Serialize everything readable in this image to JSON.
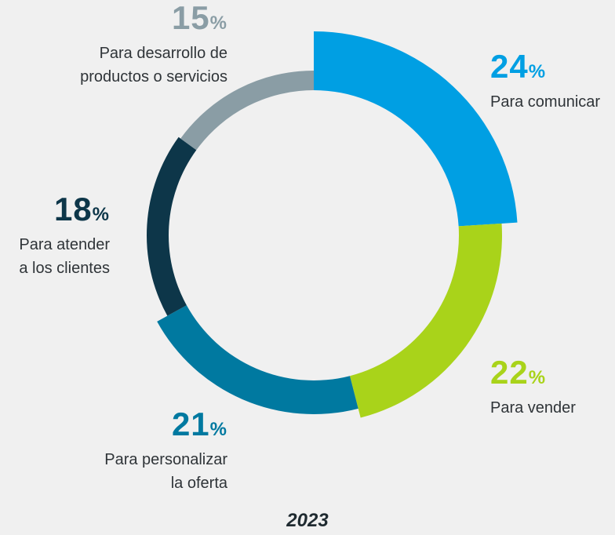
{
  "chart_data": {
    "type": "donut",
    "title": "2023",
    "categories": [
      "Para comunicar",
      "Para vender",
      "Para personalizar la oferta",
      "Para atender a los clientes",
      "Para desarrollo de productos o servicios"
    ],
    "values": [
      24,
      22,
      21,
      18,
      15
    ],
    "value_labels": [
      "24%",
      "22%",
      "21%",
      "18%",
      "15%"
    ],
    "colors": [
      "#009fe3",
      "#a9d31a",
      "#0079a0",
      "#0d3649",
      "#8a9da5"
    ]
  }
}
